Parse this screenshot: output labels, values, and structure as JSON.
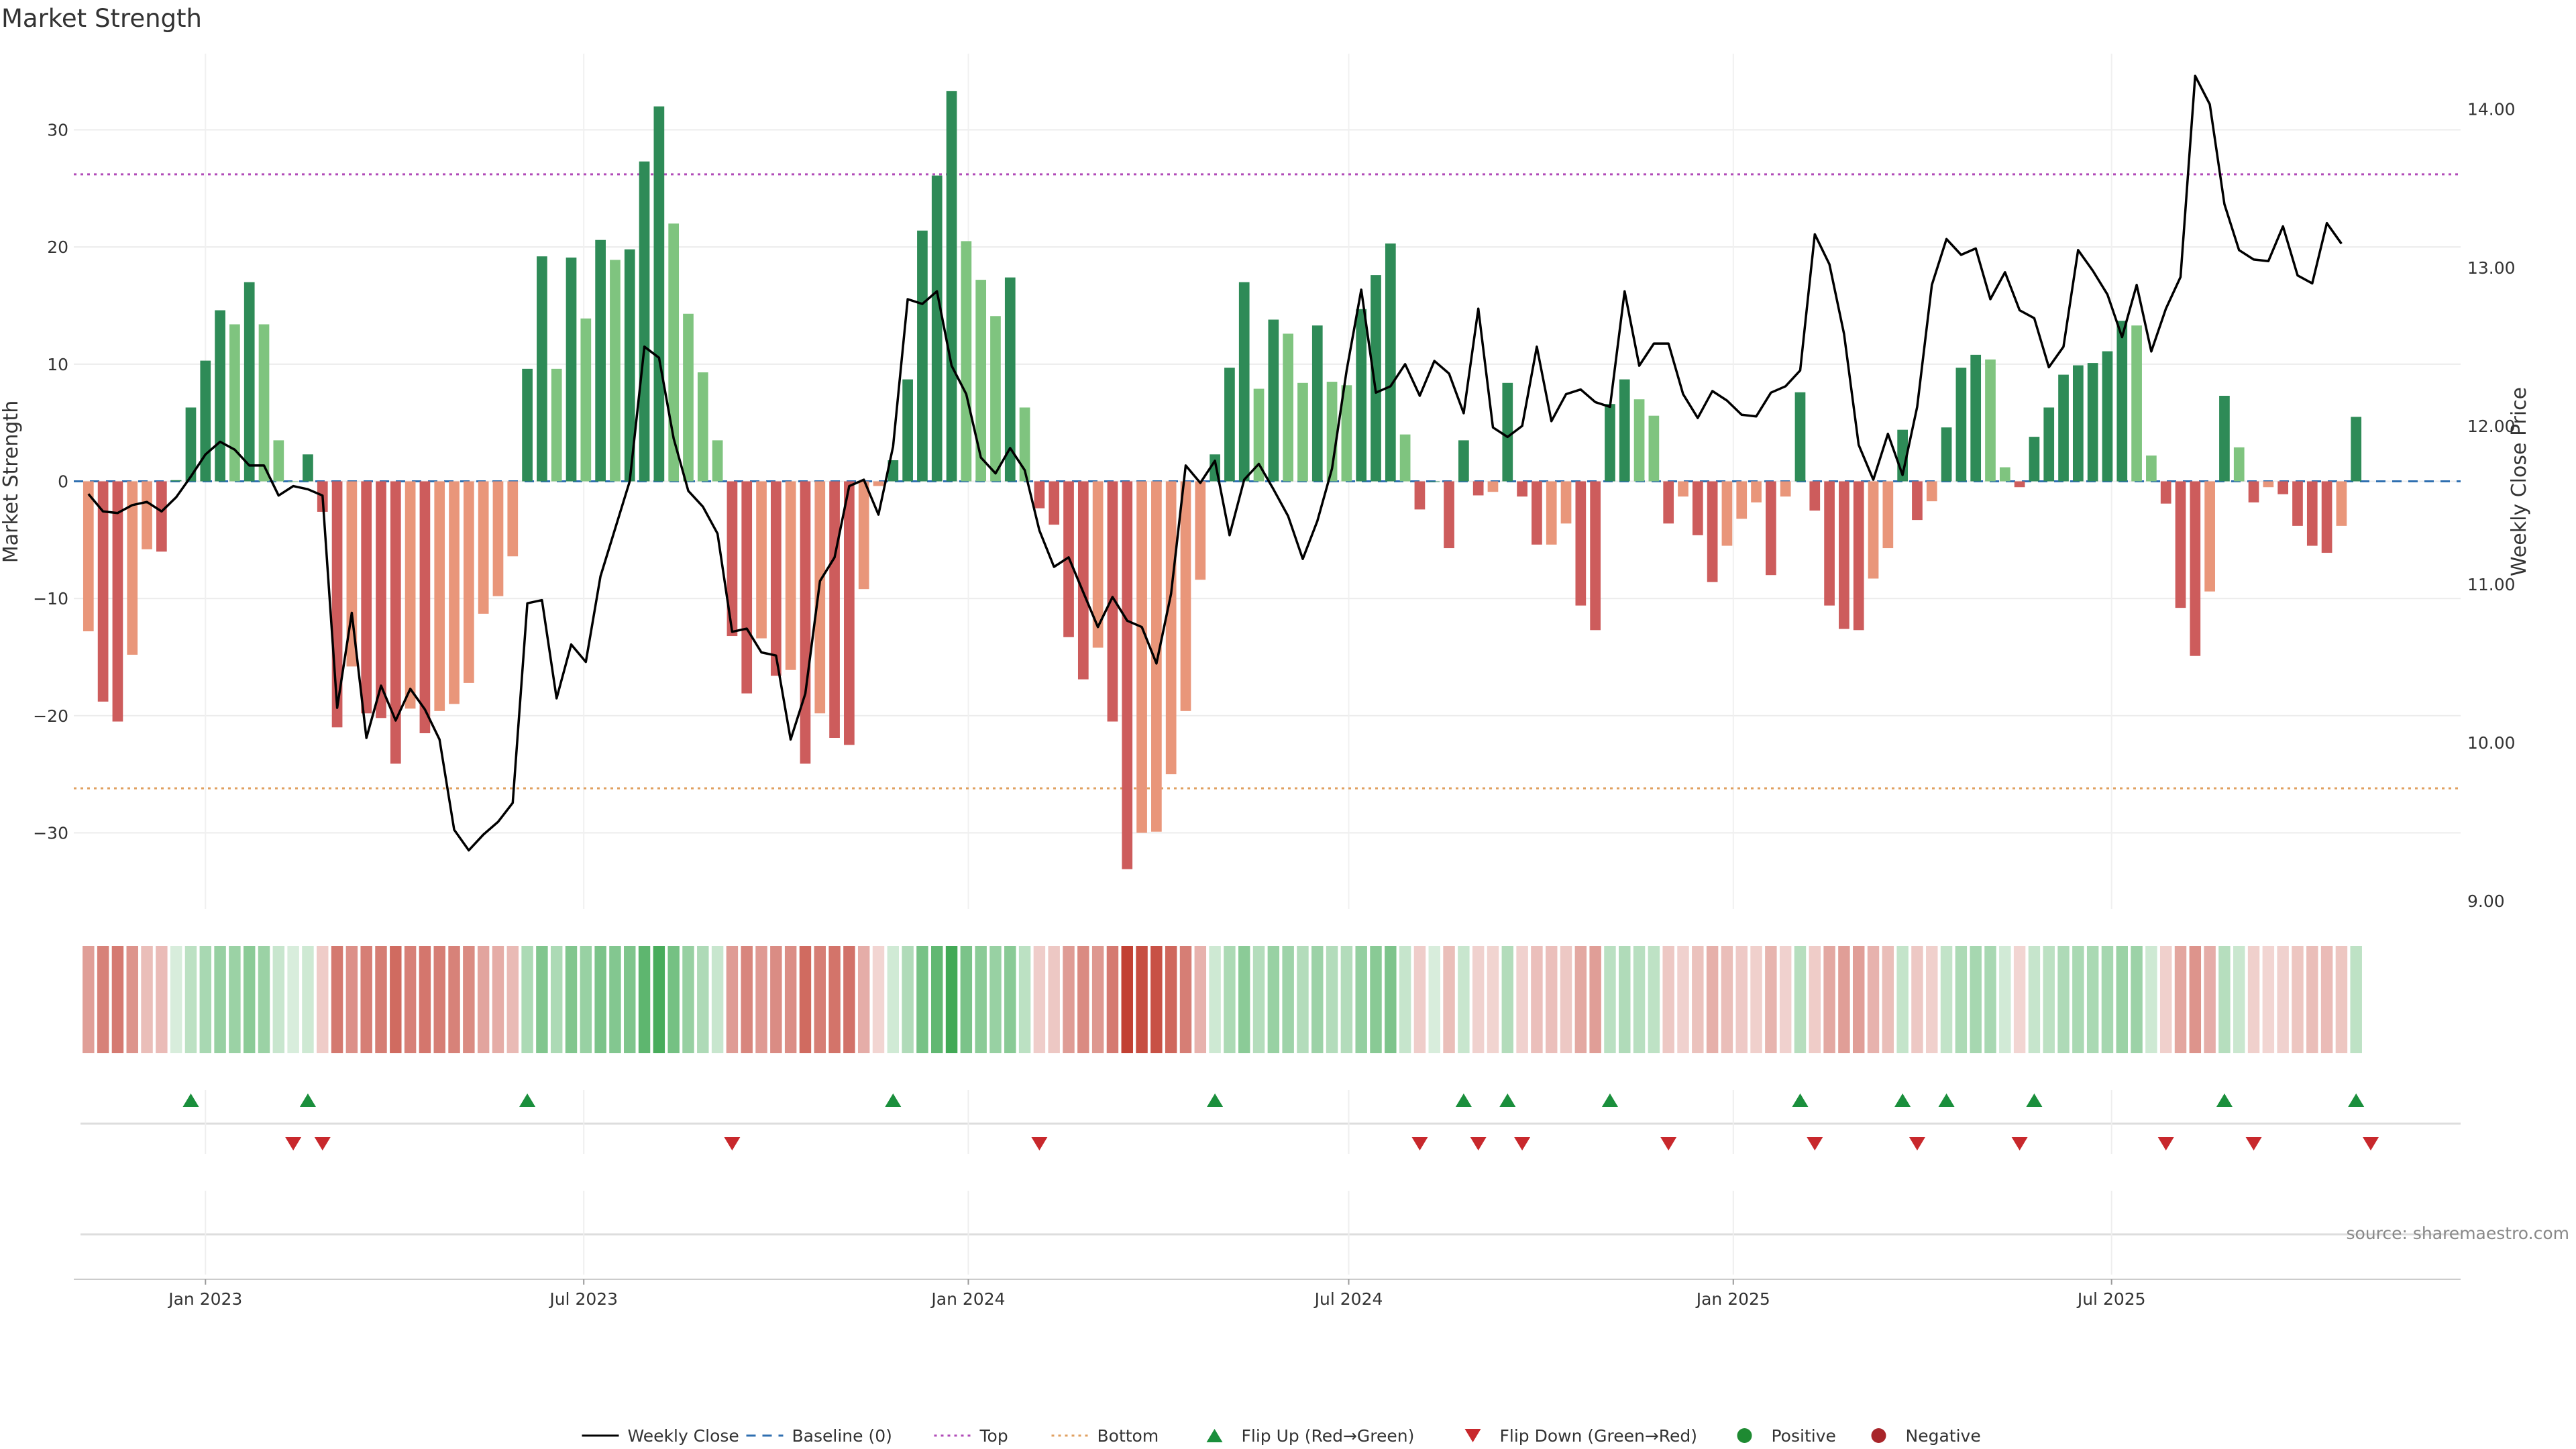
{
  "title": "Market Strength",
  "source": "source: sharemaestro.com",
  "chart_data": {
    "type": "bar",
    "title": "Market Strength",
    "ylabel_left": "Market Strength",
    "ylabel_right": "Weekly Close Price",
    "y_left_range": [
      -36.5,
      36.5
    ],
    "y_left_ticks": [
      "30",
      "20",
      "10",
      "0",
      "−10",
      "−20",
      "−30"
    ],
    "y_left_tick_values": [
      30,
      20,
      10,
      0,
      -10,
      -20,
      -30
    ],
    "y_right_range": [
      8.95,
      14.35
    ],
    "y_right_ticks": [
      "14.00",
      "13.00",
      "12.00",
      "11.00",
      "10.00",
      "9.00"
    ],
    "y_right_tick_values": [
      14,
      13,
      12,
      11,
      10,
      9
    ],
    "top_line": 26.2,
    "bottom_line": -26.2,
    "x_range": [
      "2022-10-30",
      "2025-12-15"
    ],
    "x_ticks": [
      {
        "label": "Jan 2023",
        "date": "2023-01-01"
      },
      {
        "label": "Jul 2023",
        "date": "2023-07-01"
      },
      {
        "label": "Jan 2024",
        "date": "2024-01-01"
      },
      {
        "label": "Jul 2024",
        "date": "2024-07-01"
      },
      {
        "label": "Jan 2025",
        "date": "2025-01-01"
      },
      {
        "label": "Jul 2025",
        "date": "2025-07-01"
      }
    ],
    "grid": true,
    "first_week": "2022-11-06",
    "week_step_days": 7,
    "strength": [
      -12.8,
      -18.8,
      -20.5,
      -14.8,
      -5.8,
      -6,
      0.1,
      6.3,
      10.3,
      14.6,
      13.4,
      17,
      13.4,
      3.5,
      0,
      2.3,
      -2.6,
      -21,
      -15.8,
      -19.8,
      -20.2,
      -24.1,
      -19.4,
      -21.5,
      -19.6,
      -19,
      -17.2,
      -11.3,
      -9.8,
      -6.4,
      9.6,
      19.2,
      9.6,
      19.1,
      13.9,
      20.6,
      18.9,
      19.8,
      27.3,
      32,
      22,
      14.3,
      9.3,
      3.5,
      -13.2,
      -18.1,
      -13.4,
      -16.6,
      -16.1,
      -24.1,
      -19.8,
      -21.9,
      -22.5,
      -9.2,
      -0.4,
      1.8,
      8.7,
      21.4,
      26.1,
      33.3,
      20.5,
      17.2,
      14.1,
      17.4,
      6.3,
      -2.3,
      -3.7,
      -13.3,
      -16.9,
      -14.2,
      -20.5,
      -33.1,
      -30,
      -29.9,
      -25,
      -19.6,
      -8.4,
      2.3,
      9.7,
      17,
      7.9,
      13.8,
      12.6,
      8.4,
      13.3,
      8.5,
      8.2,
      14.7,
      17.6,
      20.3,
      4,
      -2.4,
      0,
      -5.7,
      3.5,
      -1.2,
      -0.9,
      8.4,
      -1.3,
      -5.4,
      -5.4,
      -3.6,
      -10.6,
      -12.7,
      6.6,
      8.7,
      7,
      5.6,
      -3.6,
      -1.3,
      -4.6,
      -8.6,
      -5.5,
      -3.2,
      -1.8,
      -8,
      -1.3,
      7.6,
      -2.5,
      -10.6,
      -12.6,
      -12.7,
      -8.3,
      -5.7,
      4.4,
      -3.3,
      -1.7,
      4.6,
      9.7,
      10.8,
      10.4,
      1.2,
      -0.5,
      3.8,
      6.3,
      9.1,
      9.9,
      10.1,
      11.1,
      13.7,
      13.3,
      2.2,
      -1.9,
      -10.8,
      -14.9,
      -9.4,
      7.3,
      2.9,
      -1.8,
      -0.5,
      -1.1,
      -3.8,
      -5.5,
      -6.1,
      -3.8,
      5.5
    ],
    "weekly_close": [
      11.57,
      11.46,
      11.45,
      11.5,
      11.52,
      11.46,
      11.55,
      11.68,
      11.82,
      11.9,
      11.85,
      11.75,
      11.75,
      11.56,
      11.62,
      11.6,
      11.56,
      10.22,
      10.82,
      10.03,
      10.36,
      10.14,
      10.34,
      10.21,
      10.02,
      9.45,
      9.32,
      9.42,
      9.5,
      9.62,
      10.88,
      10.9,
      10.28,
      10.62,
      10.51,
      11.05,
      11.35,
      11.65,
      12.5,
      12.43,
      11.92,
      11.59,
      11.49,
      11.32,
      10.7,
      10.72,
      10.57,
      10.55,
      10.02,
      10.31,
      11.02,
      11.17,
      11.62,
      11.66,
      11.44,
      11.87,
      12.8,
      12.77,
      12.85,
      12.38,
      12.2,
      11.8,
      11.7,
      11.86,
      11.72,
      11.34,
      11.11,
      11.17,
      10.95,
      10.73,
      10.92,
      10.77,
      10.73,
      10.5,
      10.94,
      11.75,
      11.64,
      11.78,
      11.31,
      11.66,
      11.76,
      11.6,
      11.43,
      11.16,
      11.4,
      11.73,
      12.35,
      12.86,
      12.21,
      12.25,
      12.39,
      12.19,
      12.41,
      12.33,
      12.08,
      12.74,
      11.99,
      11.93,
      12.0,
      12.5,
      12.03,
      12.2,
      12.23,
      12.15,
      12.12,
      12.85,
      12.38,
      12.52,
      12.52,
      12.2,
      12.05,
      12.22,
      12.16,
      12.07,
      12.06,
      12.21,
      12.25,
      12.35,
      13.21,
      13.02,
      12.58,
      11.88,
      11.66,
      11.95,
      11.69,
      12.12,
      12.89,
      13.18,
      13.08,
      13.12,
      12.8,
      12.97,
      12.73,
      12.68,
      12.37,
      12.5,
      13.11,
      12.98,
      12.83,
      12.56,
      12.89,
      12.47,
      12.74,
      12.94,
      14.21,
      14.03,
      13.4,
      13.11,
      13.05,
      13.04,
      13.26,
      12.95,
      12.9,
      13.28,
      13.15
    ],
    "flip_up_weeks": [
      7,
      15,
      30,
      55,
      77,
      94,
      97,
      104,
      117,
      124,
      127,
      133,
      146,
      155
    ],
    "flip_down_weeks": [
      14,
      16,
      44,
      65,
      91,
      95,
      98,
      108,
      118,
      125,
      132,
      142,
      148,
      156
    ],
    "series": [
      {
        "name": "Weekly Close",
        "color": "#000000"
      },
      {
        "name": "Baseline (0)",
        "color": "#2f6fb0"
      },
      {
        "name": "Top",
        "color": "#b14bb8"
      },
      {
        "name": "Bottom",
        "color": "#e0a060"
      },
      {
        "name": "Flip Up (Red→Green)",
        "color": "#1a8f3c"
      },
      {
        "name": "Flip Down (Green→Red)",
        "color": "#c8282c"
      },
      {
        "name": "Positive",
        "color": "#1e8a32"
      },
      {
        "name": "Negative",
        "color": "#a8252a"
      }
    ],
    "colors": {
      "strong_positive": "#2e8b57",
      "weak_positive": "#7fc47f",
      "strong_negative": "#cd5c5c",
      "weak_negative": "#e9967a"
    }
  }
}
